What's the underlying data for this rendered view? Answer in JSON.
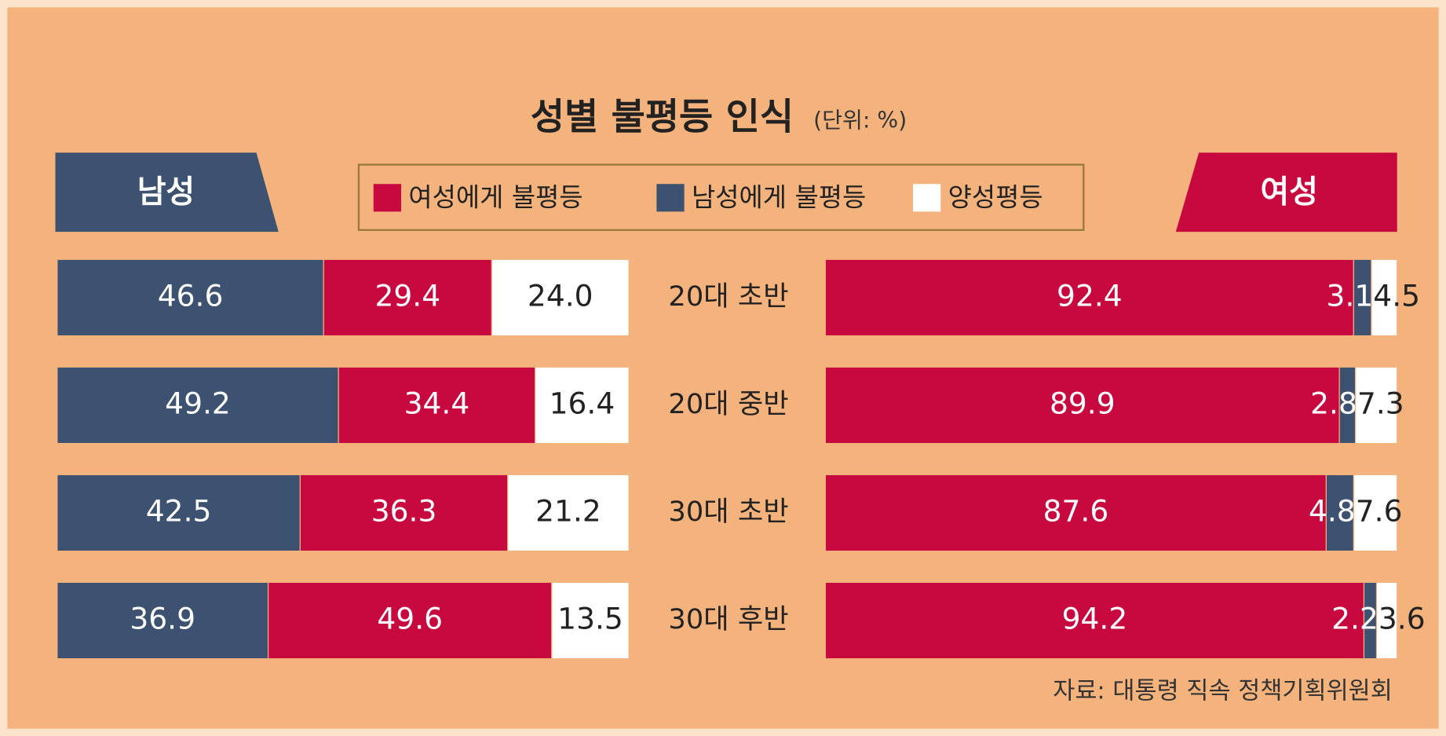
{
  "title": "성별 불평등 인식",
  "unit": "(단위: %)",
  "source": "자료: 대통령 직속 정책기획위원회",
  "chart_data": [
    {
      "type": "bar",
      "stacked": true,
      "orientation": "horizontal",
      "title": "남성",
      "title_color": "#3d5170",
      "categories": [
        "20대 초반",
        "20대 중반",
        "30대 초반",
        "30대 후반"
      ],
      "xlim": [
        0,
        100
      ],
      "series": [
        {
          "color": "#3d5170",
          "values": [
            46.6,
            49.2,
            42.5,
            36.9
          ]
        },
        {
          "color": "#c8093f",
          "values": [
            29.4,
            34.4,
            36.3,
            49.6
          ]
        },
        {
          "color": "#ffffff",
          "values": [
            24.0,
            16.4,
            21.2,
            13.5
          ],
          "value_labels": [
            "24.0",
            "16.4",
            "21.2",
            "13.5"
          ]
        }
      ]
    },
    {
      "type": "bar",
      "stacked": true,
      "orientation": "horizontal",
      "title": "여성",
      "title_color": "#c8093f",
      "xlim": [
        0,
        100
      ],
      "series": [
        {
          "name": "여성에게 불평등",
          "color": "#c8093f",
          "values": [
            92.4,
            89.9,
            87.6,
            94.2
          ]
        },
        {
          "name": "남성에게 불평등",
          "color": "#3d5170",
          "values": [
            3.1,
            2.8,
            4.8,
            2.2
          ]
        },
        {
          "name": "양성평등",
          "color": "#ffffff",
          "values": [
            4.5,
            7.3,
            7.6,
            3.6
          ]
        }
      ]
    }
  ]
}
